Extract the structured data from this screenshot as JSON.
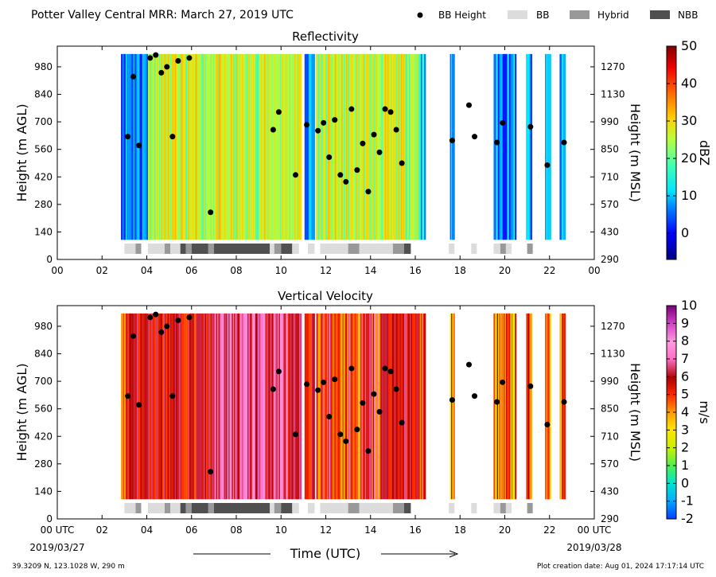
{
  "header": {
    "title": "Potter Valley Central MRR:  March 27, 2019 UTC"
  },
  "legend": {
    "items": [
      {
        "label": "BB Height",
        "symbol": "dot",
        "color": "#000000"
      },
      {
        "label": "BB",
        "symbol": "box",
        "color": "#dcdcdc"
      },
      {
        "label": "Hybrid",
        "symbol": "box",
        "color": "#999999"
      },
      {
        "label": "NBB",
        "symbol": "box",
        "color": "#505050"
      }
    ]
  },
  "axes": {
    "ylabel_left": "Height (m AGL)",
    "ylabel_right": "Height (m MSL)",
    "yticks_agl": [
      "0",
      "140",
      "280",
      "420",
      "560",
      "700",
      "840",
      "980"
    ],
    "yticks_msl": [
      "290",
      "430",
      "570",
      "710",
      "850",
      "990",
      "1130",
      "1270"
    ],
    "xticks_top": [
      "00",
      "02",
      "04",
      "06",
      "08",
      "10",
      "12",
      "14",
      "16",
      "18",
      "20",
      "22",
      "00"
    ],
    "xticks_bottom": [
      "00 UTC",
      "02",
      "04",
      "06",
      "08",
      "10",
      "12",
      "14",
      "16",
      "18",
      "20",
      "22",
      "00 UTC"
    ],
    "date_left": "2019/03/27",
    "date_right": "2019/03/28",
    "xlabel": "Time (UTC)"
  },
  "footer": {
    "location": "39.3209 N, 123.1028 W, 290 m",
    "created": "Plot creation date: Aug 01, 2024 17:17:14 UTC"
  },
  "colorbars": {
    "reflectivity": {
      "label": "dBZ",
      "ticks": [
        "0",
        "10",
        "20",
        "30",
        "40",
        "50"
      ],
      "min": -7,
      "max": 50
    },
    "velocity": {
      "label": "m/s",
      "ticks": [
        "-2",
        "-1",
        "0",
        "1",
        "2",
        "3",
        "4",
        "5",
        "6",
        "7",
        "8",
        "9",
        "10"
      ],
      "min": -2,
      "max": 10
    }
  },
  "chart_data": [
    {
      "type": "heatmap",
      "title": "Reflectivity",
      "xlabel": "",
      "ylabel": "Height (m AGL)",
      "ylabel_right": "Height (m MSL)",
      "xlim_hours": [
        0,
        24
      ],
      "ylim_m_agl": [
        0,
        1085
      ],
      "colorbar": {
        "label": "dBZ",
        "range": [
          -7,
          50
        ]
      },
      "data_segments_hours": [
        [
          2.85,
          4.0
        ],
        [
          4.05,
          10.9
        ],
        [
          11.05,
          11.5
        ],
        [
          11.55,
          16.3
        ],
        [
          16.35,
          16.45
        ],
        [
          17.55,
          17.75
        ],
        [
          19.5,
          20.5
        ],
        [
          20.95,
          21.2
        ],
        [
          21.8,
          22.05
        ],
        [
          22.45,
          22.7
        ]
      ],
      "bb_height_points": [
        {
          "x": 3.15,
          "y": 625
        },
        {
          "x": 3.4,
          "y": 930
        },
        {
          "x": 3.65,
          "y": 580
        },
        {
          "x": 4.15,
          "y": 1025
        },
        {
          "x": 4.4,
          "y": 1040
        },
        {
          "x": 4.65,
          "y": 950
        },
        {
          "x": 4.9,
          "y": 980
        },
        {
          "x": 5.15,
          "y": 625
        },
        {
          "x": 5.4,
          "y": 1010
        },
        {
          "x": 5.9,
          "y": 1025
        },
        {
          "x": 6.85,
          "y": 240
        },
        {
          "x": 9.65,
          "y": 660
        },
        {
          "x": 9.9,
          "y": 750
        },
        {
          "x": 10.65,
          "y": 430
        },
        {
          "x": 11.15,
          "y": 685
        },
        {
          "x": 11.65,
          "y": 655
        },
        {
          "x": 11.9,
          "y": 695
        },
        {
          "x": 12.15,
          "y": 520
        },
        {
          "x": 12.4,
          "y": 710
        },
        {
          "x": 12.65,
          "y": 430
        },
        {
          "x": 12.9,
          "y": 395
        },
        {
          "x": 13.15,
          "y": 765
        },
        {
          "x": 13.4,
          "y": 455
        },
        {
          "x": 13.65,
          "y": 590
        },
        {
          "x": 13.9,
          "y": 345
        },
        {
          "x": 14.15,
          "y": 635
        },
        {
          "x": 14.4,
          "y": 545
        },
        {
          "x": 14.65,
          "y": 765
        },
        {
          "x": 14.9,
          "y": 750
        },
        {
          "x": 15.15,
          "y": 660
        },
        {
          "x": 15.4,
          "y": 490
        },
        {
          "x": 17.65,
          "y": 605
        },
        {
          "x": 18.4,
          "y": 785
        },
        {
          "x": 18.65,
          "y": 625
        },
        {
          "x": 19.65,
          "y": 595
        },
        {
          "x": 19.9,
          "y": 695
        },
        {
          "x": 21.15,
          "y": 675
        },
        {
          "x": 21.9,
          "y": 480
        },
        {
          "x": 22.65,
          "y": 595
        }
      ],
      "bb_type_segments": [
        {
          "start": 3.0,
          "end": 3.5,
          "class": "BB"
        },
        {
          "start": 3.5,
          "end": 3.75,
          "class": "Hybrid"
        },
        {
          "start": 4.05,
          "end": 4.8,
          "class": "BB"
        },
        {
          "start": 4.8,
          "end": 5.05,
          "class": "Hybrid"
        },
        {
          "start": 5.05,
          "end": 5.5,
          "class": "BB"
        },
        {
          "start": 5.5,
          "end": 5.75,
          "class": "NBB"
        },
        {
          "start": 5.75,
          "end": 6.0,
          "class": "Hybrid"
        },
        {
          "start": 6.0,
          "end": 6.75,
          "class": "NBB"
        },
        {
          "start": 6.75,
          "end": 7.0,
          "class": "Hybrid"
        },
        {
          "start": 7.0,
          "end": 9.5,
          "class": "NBB"
        },
        {
          "start": 9.5,
          "end": 9.7,
          "class": "BB"
        },
        {
          "start": 9.7,
          "end": 10.0,
          "class": "Hybrid"
        },
        {
          "start": 10.0,
          "end": 10.5,
          "class": "NBB"
        },
        {
          "start": 10.5,
          "end": 10.8,
          "class": "BB"
        },
        {
          "start": 11.2,
          "end": 11.5,
          "class": "BB"
        },
        {
          "start": 11.75,
          "end": 13.0,
          "class": "BB"
        },
        {
          "start": 13.0,
          "end": 13.5,
          "class": "Hybrid"
        },
        {
          "start": 13.5,
          "end": 15.0,
          "class": "BB"
        },
        {
          "start": 15.0,
          "end": 15.5,
          "class": "Hybrid"
        },
        {
          "start": 15.5,
          "end": 15.8,
          "class": "NBB"
        },
        {
          "start": 17.5,
          "end": 17.75,
          "class": "BB"
        },
        {
          "start": 18.5,
          "end": 18.75,
          "class": "BB"
        },
        {
          "start": 19.5,
          "end": 19.8,
          "class": "BB"
        },
        {
          "start": 19.8,
          "end": 20.05,
          "class": "Hybrid"
        },
        {
          "start": 20.05,
          "end": 20.3,
          "class": "BB"
        },
        {
          "start": 21.0,
          "end": 21.25,
          "class": "Hybrid"
        }
      ]
    },
    {
      "type": "heatmap",
      "title": "Vertical Velocity",
      "xlabel": "Time (UTC)",
      "ylabel": "Height (m AGL)",
      "ylabel_right": "Height (m MSL)",
      "xlim_hours": [
        0,
        24
      ],
      "ylim_m_agl": [
        0,
        1085
      ],
      "colorbar": {
        "label": "m/s",
        "range": [
          -2,
          10
        ]
      },
      "bb_height_points": "same as Reflectivity panel",
      "bb_type_segments": "same as Reflectivity panel"
    }
  ]
}
